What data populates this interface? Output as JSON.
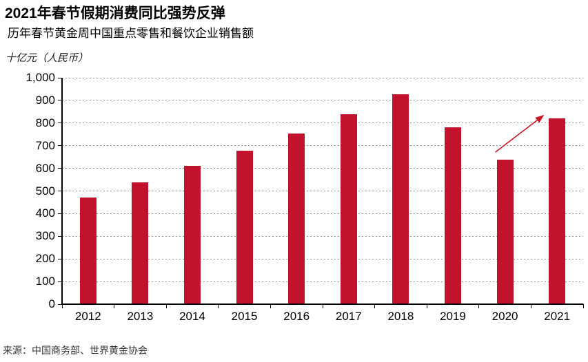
{
  "page": {
    "title": "2021年春节假期消费同比强势反弹",
    "subtitle": "历年春节黄金周中国重点零售和餐饮企业销售额",
    "unit_label": "十亿元（人民币）",
    "source": "来源：中国商务部、世界黄金协会"
  },
  "colors": {
    "bar": "#C1132E",
    "arrow": "#CC1426",
    "axis": "#000000",
    "gridline": "#919191",
    "text": "#000000",
    "source_text": "#333333"
  },
  "chart_data": {
    "type": "bar",
    "title": "2021年春节假期消费同比强势反弹",
    "subtitle": "历年春节黄金周中国重点零售和餐饮企业销售额",
    "ylabel": "十亿元（人民币）",
    "xlabel": "",
    "categories": [
      "2012",
      "2013",
      "2014",
      "2015",
      "2016",
      "2017",
      "2018",
      "2019",
      "2020",
      "2021"
    ],
    "values": [
      470,
      539,
      611,
      678,
      754,
      840,
      926,
      780,
      638,
      821
    ],
    "ylim": [
      0,
      1000
    ],
    "ytick_step": 100,
    "ytick_labels": [
      "0",
      "100",
      "200",
      "300",
      "400",
      "500",
      "600",
      "700",
      "800",
      "900",
      "1,000"
    ],
    "grid": "horizontal-dashed",
    "legend": "none",
    "annotation": {
      "type": "arrow",
      "from_category": "2020",
      "to_category": "2021",
      "meaning": "strong rebound from 2020 to 2021"
    },
    "source": "来源：中国商务部、世界黄金协会"
  }
}
